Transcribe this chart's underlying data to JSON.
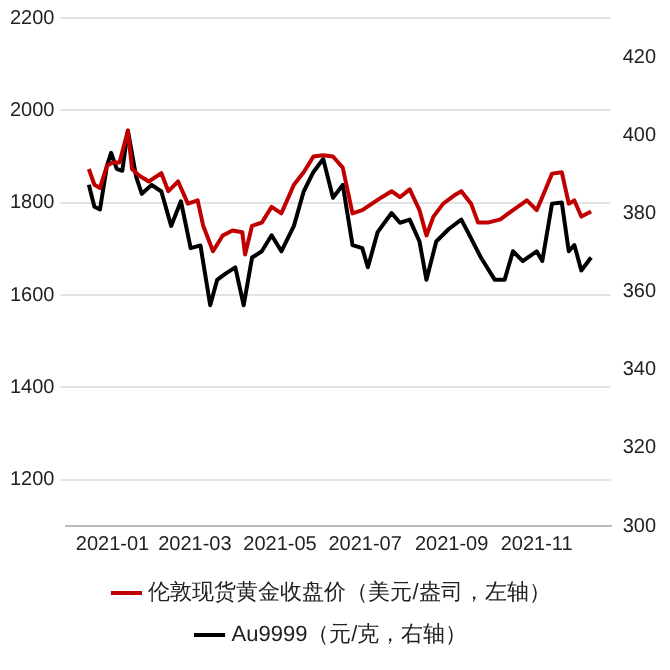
{
  "chart_data": {
    "type": "line",
    "x": [
      "2020-12-15",
      "2020-12-19",
      "2020-12-23",
      "2020-12-28",
      "2021-01-01",
      "2021-01-06",
      "2021-01-12",
      "2021-01-15",
      "2021-01-20",
      "2021-01-27",
      "2021-02-05",
      "2021-02-10",
      "2021-02-17",
      "2021-02-24",
      "2021-03-03",
      "2021-03-07",
      "2021-03-14",
      "2021-03-21",
      "2021-03-28",
      "2021-04-04",
      "2021-04-06",
      "2021-04-11",
      "2021-04-18",
      "2021-04-25",
      "2021-05-02",
      "2021-05-11",
      "2021-05-18",
      "2021-05-25",
      "2021-06-01",
      "2021-06-08",
      "2021-06-15",
      "2021-06-22",
      "2021-06-29",
      "2021-07-06",
      "2021-07-13",
      "2021-07-20",
      "2021-07-26",
      "2021-08-02",
      "2021-08-09",
      "2021-08-14",
      "2021-08-19",
      "2021-08-26",
      "2021-09-04",
      "2021-09-08",
      "2021-09-15",
      "2021-09-20",
      "2021-09-27",
      "2021-10-06",
      "2021-10-15",
      "2021-10-25",
      "2021-11-01",
      "2021-11-05",
      "2021-11-12",
      "2021-11-19",
      "2021-11-24",
      "2021-11-28",
      "2021-12-03",
      "2021-12-10"
    ],
    "series": [
      {
        "name": "伦敦现货黄金收盘价（美元/盎司，左轴）",
        "color": "#c00000",
        "values": [
          1873,
          1839,
          1832,
          1880,
          1887,
          1887,
          1956,
          1873,
          1859,
          1846,
          1864,
          1825,
          1846,
          1798,
          1805,
          1750,
          1695,
          1729,
          1740,
          1736,
          1688,
          1750,
          1757,
          1791,
          1777,
          1839,
          1866,
          1900,
          1903,
          1900,
          1876,
          1777,
          1784,
          1798,
          1812,
          1825,
          1812,
          1829,
          1784,
          1729,
          1770,
          1798,
          1818,
          1825,
          1798,
          1757,
          1757,
          1764,
          1784,
          1805,
          1784,
          1812,
          1863,
          1866,
          1798,
          1805,
          1770,
          1781
        ]
      },
      {
        "name": "Au9999（元/克，右轴）",
        "color": "#000000",
        "axis": "y2",
        "x": [
          "2020-12-15",
          "2020-12-19",
          "2020-12-23",
          "2020-12-28",
          "2020-12-31",
          "2021-01-04",
          "2021-01-08",
          "2021-01-12",
          "2021-01-18",
          "2021-01-22",
          "2021-01-29",
          "2021-02-05",
          "2021-02-12",
          "2021-02-19",
          "2021-02-26",
          "2021-03-05",
          "2021-03-12",
          "2021-03-17",
          "2021-03-23",
          "2021-03-30",
          "2021-04-05",
          "2021-04-11",
          "2021-04-18",
          "2021-04-25",
          "2021-05-02",
          "2021-05-11",
          "2021-05-18",
          "2021-05-25",
          "2021-06-01",
          "2021-06-08",
          "2021-06-15",
          "2021-06-22",
          "2021-06-29",
          "2021-07-03",
          "2021-07-10",
          "2021-07-20",
          "2021-07-26",
          "2021-08-02",
          "2021-08-09",
          "2021-08-14",
          "2021-08-21",
          "2021-08-30",
          "2021-09-08",
          "2021-09-15",
          "2021-09-22",
          "2021-10-02",
          "2021-10-09",
          "2021-10-15",
          "2021-10-22",
          "2021-11-01",
          "2021-11-05",
          "2021-11-12",
          "2021-11-19",
          "2021-11-24",
          "2021-11-28",
          "2021-12-03",
          "2021-12-10"
        ],
        "values": [
          387.3,
          381.7,
          381.0,
          392.2,
          395.5,
          391.4,
          390.9,
          401.2,
          389.3,
          385.0,
          387.3,
          385.6,
          376.8,
          383.1,
          371.1,
          371.8,
          356.5,
          363.0,
          364.6,
          366.2,
          356.5,
          368.7,
          370.3,
          374.4,
          370.3,
          376.8,
          385.6,
          390.6,
          393.9,
          384.0,
          387.3,
          371.9,
          371.1,
          366.2,
          375.2,
          380.1,
          377.6,
          378.4,
          372.8,
          363.0,
          372.8,
          376.0,
          378.4,
          373.6,
          368.7,
          363.0,
          363.0,
          370.3,
          367.8,
          370.3,
          367.8,
          382.5,
          382.8,
          370.3,
          371.9,
          365.4,
          368.7
        ]
      }
    ],
    "xlim": [
      "2020-11-29",
      "2021-12-24"
    ],
    "xticks": [
      "2021-01",
      "2021-03",
      "2021-05",
      "2021-07",
      "2021-09",
      "2021-11"
    ],
    "ylim": [
      1100,
      2200
    ],
    "yticks": [
      1200,
      1400,
      1600,
      1800,
      2000,
      2200
    ],
    "y2lim": [
      300,
      430
    ],
    "y2ticks": [
      300,
      320,
      340,
      360,
      380,
      400,
      420
    ],
    "grid": "y",
    "legend": "bottom",
    "marker": "none",
    "line_style": "solid"
  }
}
